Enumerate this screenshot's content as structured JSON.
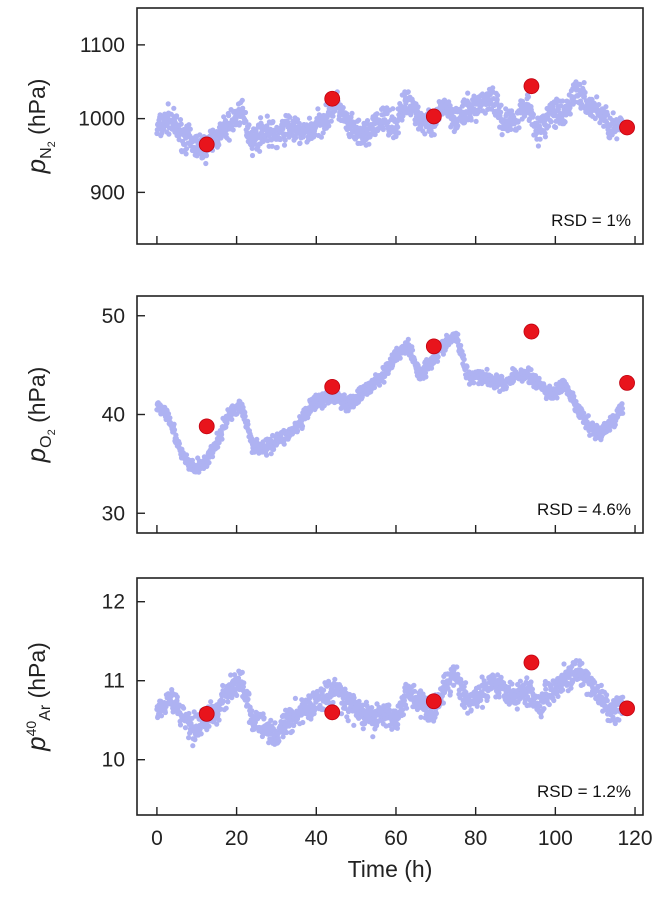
{
  "chart_data": [
    {
      "type": "scatter",
      "ylabel": {
        "main": "p",
        "sub": "N",
        "subsub": "2",
        "unit": "(hPa)"
      },
      "ylim": [
        830,
        1150
      ],
      "yticks": [
        900,
        1000,
        1100
      ],
      "xlim": [
        -5,
        122
      ],
      "xticks": [
        0,
        20,
        40,
        60,
        80,
        100,
        120
      ],
      "annotation": "RSD = 1%",
      "background_series": {
        "color": "#aeb2f2",
        "x": [
          0,
          3,
          6,
          9,
          12,
          15,
          18,
          21,
          24,
          27,
          30,
          33,
          36,
          39,
          42,
          45,
          48,
          51,
          54,
          57,
          60,
          63,
          66,
          69,
          72,
          75,
          78,
          81,
          84,
          87,
          90,
          93,
          96,
          99,
          102,
          105,
          108,
          111,
          114,
          117
        ],
        "y": [
          985,
          1000,
          980,
          965,
          960,
          975,
          990,
          1010,
          970,
          985,
          975,
          990,
          980,
          985,
          1000,
          1020,
          990,
          975,
          985,
          1000,
          990,
          1030,
          1000,
          985,
          1020,
          1000,
          1010,
          1020,
          1030,
          995,
          1000,
          1020,
          980,
          1010,
          1000,
          1040,
          1020,
          1010,
          990,
          985
        ],
        "jitter": 60
      },
      "highlight_series": {
        "color": "#e8141c",
        "x": [
          12.5,
          44,
          69.5,
          94,
          118
        ],
        "y": [
          965,
          1027,
          1003,
          1044,
          988
        ]
      }
    },
    {
      "type": "scatter",
      "ylabel": {
        "main": "p",
        "sub": "O",
        "subsub": "2",
        "unit": "(hPa)"
      },
      "ylim": [
        28,
        52
      ],
      "yticks": [
        30,
        40,
        50
      ],
      "xlim": [
        -5,
        122
      ],
      "xticks": [
        0,
        20,
        40,
        60,
        80,
        100,
        120
      ],
      "annotation": "RSD = 4.6%",
      "background_series": {
        "color": "#aeb2f2",
        "x": [
          0,
          3,
          6,
          9,
          12,
          15,
          18,
          21,
          24,
          27,
          30,
          33,
          36,
          39,
          42,
          45,
          48,
          51,
          54,
          57,
          60,
          63,
          66,
          69,
          72,
          75,
          78,
          81,
          84,
          87,
          90,
          93,
          96,
          99,
          102,
          105,
          108,
          111,
          114,
          117
        ],
        "y": [
          41,
          40,
          36,
          34.5,
          35,
          37,
          40,
          41,
          37,
          36.5,
          37.5,
          38,
          39,
          41,
          41.5,
          42,
          41,
          42,
          43,
          44,
          46,
          47,
          44,
          45.5,
          47,
          48,
          44,
          44,
          43.5,
          43,
          44,
          44,
          43,
          42,
          43,
          41,
          39,
          38,
          39,
          41
        ],
        "jitter": 2.5
      },
      "highlight_series": {
        "color": "#e8141c",
        "x": [
          12.5,
          44,
          69.5,
          94,
          118
        ],
        "y": [
          38.8,
          42.8,
          46.9,
          48.4,
          43.2
        ]
      }
    },
    {
      "type": "scatter",
      "ylabel": {
        "main": "p",
        "sup": "40",
        "sub": "Ar",
        "unit": "(hPa)"
      },
      "ylim": [
        9.3,
        12.3
      ],
      "yticks": [
        10,
        11,
        12
      ],
      "xlim": [
        -5,
        122
      ],
      "xticks": [
        0,
        20,
        40,
        60,
        80,
        100,
        120
      ],
      "xticklabels": [
        "0",
        "20",
        "40",
        "60",
        "80",
        "100",
        "120"
      ],
      "xlabel": "Time (h)",
      "annotation": "RSD = 1.2%",
      "background_series": {
        "color": "#aeb2f2",
        "x": [
          0,
          3,
          6,
          9,
          12,
          15,
          18,
          21,
          24,
          27,
          30,
          33,
          36,
          39,
          42,
          45,
          48,
          51,
          54,
          57,
          60,
          63,
          66,
          69,
          72,
          75,
          78,
          81,
          84,
          87,
          90,
          93,
          96,
          99,
          102,
          105,
          108,
          111,
          114,
          117
        ],
        "y": [
          10.6,
          10.8,
          10.6,
          10.4,
          10.5,
          10.6,
          10.9,
          11.0,
          10.5,
          10.4,
          10.3,
          10.5,
          10.6,
          10.7,
          10.8,
          10.9,
          10.7,
          10.6,
          10.5,
          10.6,
          10.5,
          10.9,
          10.7,
          10.6,
          10.9,
          11.1,
          10.7,
          10.8,
          11.0,
          10.9,
          10.8,
          10.9,
          10.7,
          10.9,
          11.0,
          11.1,
          11.0,
          10.8,
          10.6,
          10.7
        ],
        "jitter": 0.55
      },
      "highlight_series": {
        "color": "#e8141c",
        "x": [
          12.5,
          44,
          69.5,
          94,
          118
        ],
        "y": [
          10.58,
          10.6,
          10.74,
          11.23,
          10.65
        ]
      }
    }
  ]
}
